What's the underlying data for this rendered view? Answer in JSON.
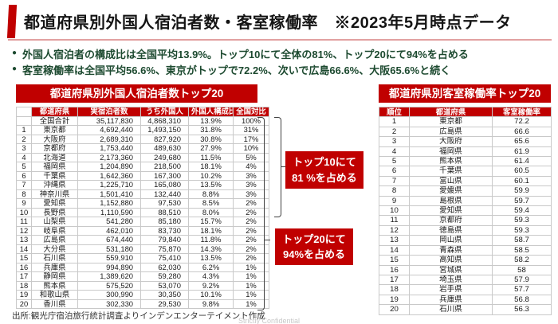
{
  "header": {
    "title": "都道府県別外国人宿泊者数・客室稼働率　※2023年5月時点データ"
  },
  "bullets": [
    "外国人宿泊者の構成比は全国平均13.9%。トップ10にて全体の81%、トップ20にて94%を占める",
    "客室稼働率は全国平均56.6%、東京がトップで72.2%、次いで広島66.6%、大阪65.6%と続く"
  ],
  "left_table": {
    "title": "都道府県別外国人宿泊者数トップ20",
    "columns": [
      "",
      "都道府県",
      "実宿泊者数",
      "うち外国人",
      "外国人構成比",
      "全国対比"
    ],
    "rows": [
      {
        "rank": "",
        "pref": "全国合計",
        "guests": "35,117,830",
        "foreign": "4,868,310",
        "ratio": "13.9%",
        "share": "100%"
      },
      {
        "rank": "1",
        "pref": "東京都",
        "guests": "4,692,440",
        "foreign": "1,493,150",
        "ratio": "31.8%",
        "share": "31%"
      },
      {
        "rank": "2",
        "pref": "大阪府",
        "guests": "2,689,310",
        "foreign": "827,920",
        "ratio": "30.8%",
        "share": "17%"
      },
      {
        "rank": "3",
        "pref": "京都府",
        "guests": "1,753,440",
        "foreign": "489,630",
        "ratio": "27.9%",
        "share": "10%"
      },
      {
        "rank": "4",
        "pref": "北海道",
        "guests": "2,173,360",
        "foreign": "249,680",
        "ratio": "11.5%",
        "share": "5%"
      },
      {
        "rank": "5",
        "pref": "福岡県",
        "guests": "1,204,890",
        "foreign": "218,500",
        "ratio": "18.1%",
        "share": "4%"
      },
      {
        "rank": "6",
        "pref": "千葉県",
        "guests": "1,642,360",
        "foreign": "167,300",
        "ratio": "10.2%",
        "share": "3%"
      },
      {
        "rank": "7",
        "pref": "沖縄県",
        "guests": "1,225,710",
        "foreign": "165,080",
        "ratio": "13.5%",
        "share": "3%"
      },
      {
        "rank": "8",
        "pref": "神奈川県",
        "guests": "1,501,410",
        "foreign": "132,440",
        "ratio": "8.8%",
        "share": "3%"
      },
      {
        "rank": "9",
        "pref": "愛知県",
        "guests": "1,152,880",
        "foreign": "97,530",
        "ratio": "8.5%",
        "share": "2%"
      },
      {
        "rank": "10",
        "pref": "長野県",
        "guests": "1,110,590",
        "foreign": "88,510",
        "ratio": "8.0%",
        "share": "2%"
      },
      {
        "rank": "11",
        "pref": "山梨県",
        "guests": "541,280",
        "foreign": "85,180",
        "ratio": "15.7%",
        "share": "2%"
      },
      {
        "rank": "12",
        "pref": "岐阜県",
        "guests": "462,010",
        "foreign": "83,730",
        "ratio": "18.1%",
        "share": "2%"
      },
      {
        "rank": "13",
        "pref": "広島県",
        "guests": "674,440",
        "foreign": "79,840",
        "ratio": "11.8%",
        "share": "2%"
      },
      {
        "rank": "14",
        "pref": "大分県",
        "guests": "531,180",
        "foreign": "75,870",
        "ratio": "14.3%",
        "share": "2%"
      },
      {
        "rank": "15",
        "pref": "石川県",
        "guests": "559,910",
        "foreign": "75,410",
        "ratio": "13.5%",
        "share": "2%"
      },
      {
        "rank": "16",
        "pref": "兵庫県",
        "guests": "994,890",
        "foreign": "62,030",
        "ratio": "6.2%",
        "share": "1%"
      },
      {
        "rank": "17",
        "pref": "静岡県",
        "guests": "1,389,620",
        "foreign": "59,280",
        "ratio": "4.3%",
        "share": "1%"
      },
      {
        "rank": "18",
        "pref": "熊本県",
        "guests": "575,520",
        "foreign": "53,070",
        "ratio": "9.2%",
        "share": "1%"
      },
      {
        "rank": "19",
        "pref": "和歌山県",
        "guests": "300,990",
        "foreign": "30,350",
        "ratio": "10.1%",
        "share": "1%"
      },
      {
        "rank": "20",
        "pref": "香川県",
        "guests": "302,330",
        "foreign": "29,530",
        "ratio": "9.8%",
        "share": "1%"
      }
    ]
  },
  "right_table": {
    "title": "都道府県別客室稼働率トップ20",
    "columns": [
      "順位",
      "都道府県",
      "客室稼働率"
    ],
    "rows": [
      {
        "rank": "1",
        "pref": "東京都",
        "rate": "72.2"
      },
      {
        "rank": "2",
        "pref": "広島県",
        "rate": "66.6"
      },
      {
        "rank": "3",
        "pref": "大阪府",
        "rate": "65.6"
      },
      {
        "rank": "4",
        "pref": "福岡県",
        "rate": "61.9"
      },
      {
        "rank": "5",
        "pref": "熊本県",
        "rate": "61.4"
      },
      {
        "rank": "6",
        "pref": "千葉県",
        "rate": "60.5"
      },
      {
        "rank": "7",
        "pref": "富山県",
        "rate": "60.1"
      },
      {
        "rank": "8",
        "pref": "愛媛県",
        "rate": "59.9"
      },
      {
        "rank": "9",
        "pref": "島根県",
        "rate": "59.7"
      },
      {
        "rank": "10",
        "pref": "愛知県",
        "rate": "59.4"
      },
      {
        "rank": "11",
        "pref": "京都府",
        "rate": "59.3"
      },
      {
        "rank": "12",
        "pref": "徳島県",
        "rate": "59.3"
      },
      {
        "rank": "13",
        "pref": "岡山県",
        "rate": "58.7"
      },
      {
        "rank": "14",
        "pref": "青森県",
        "rate": "58.5"
      },
      {
        "rank": "15",
        "pref": "高知県",
        "rate": "58.2"
      },
      {
        "rank": "16",
        "pref": "宮城県",
        "rate": "58"
      },
      {
        "rank": "17",
        "pref": "埼玉県",
        "rate": "57.9"
      },
      {
        "rank": "18",
        "pref": "岩手県",
        "rate": "57.7"
      },
      {
        "rank": "19",
        "pref": "兵庫県",
        "rate": "56.8"
      },
      {
        "rank": "20",
        "pref": "石川県",
        "rate": "56.3"
      }
    ]
  },
  "callouts": [
    {
      "line1": "トップ10にて",
      "line2": "81 %を占める"
    },
    {
      "line1": "トップ20にて",
      "line2": "94%を占める"
    }
  ],
  "source": "出所:観光庁宿泊旅行統計調査よりインデンエンターテイメント作成",
  "watermark": "Strictly Confidential",
  "colors": {
    "accent_red": "#C00000",
    "bullet_green": "#1D4A30",
    "underline_pink": "#E2A1A1",
    "table_border_gray": "#C9C9C9",
    "bracket_gray": "#404040"
  }
}
